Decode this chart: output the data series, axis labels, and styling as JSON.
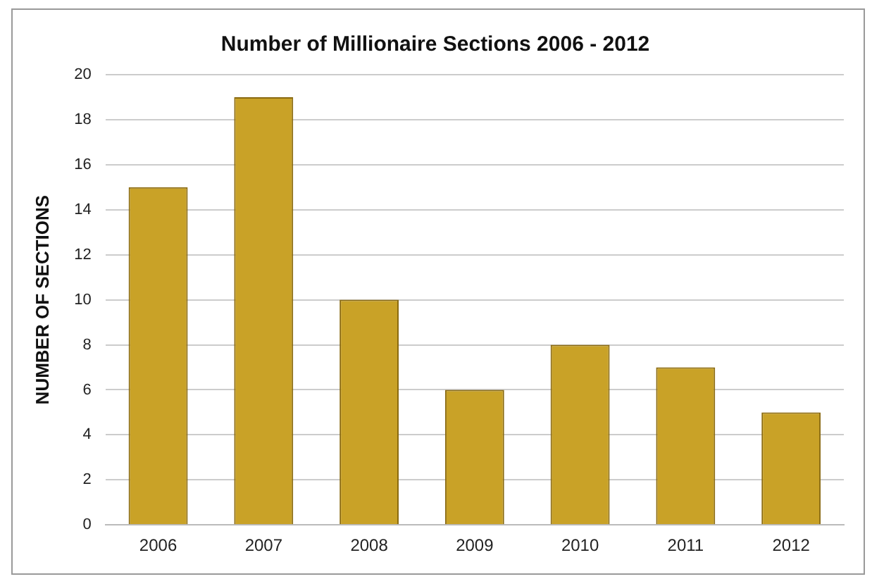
{
  "chart_data": {
    "type": "bar",
    "title": "Number of Millionaire Sections 2006 - 2012",
    "ylabel": "NUMBER OF SECTIONS",
    "categories": [
      "2006",
      "2007",
      "2008",
      "2009",
      "2010",
      "2011",
      "2012"
    ],
    "values": [
      15,
      19,
      10,
      6,
      8,
      7,
      5
    ],
    "color": "#c9a227",
    "ylim": [
      0,
      20
    ],
    "yticks": [
      0,
      2,
      4,
      6,
      8,
      10,
      12,
      14,
      16,
      18,
      20
    ],
    "grid": "y"
  }
}
